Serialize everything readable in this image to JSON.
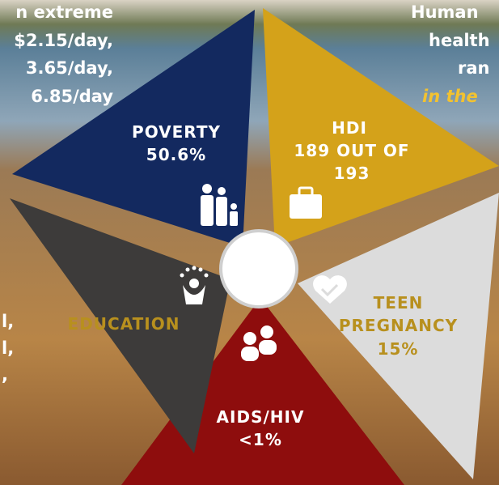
{
  "background_text": {
    "left": [
      "n extreme",
      "$2.15/day,",
      "3.65/day,",
      "6.85/day"
    ],
    "right": [
      "Human",
      "health",
      "ran"
    ],
    "right_italic": "in the",
    "left_lower": [
      "l,",
      "l,",
      ","
    ]
  },
  "segments": [
    {
      "label": "POVERTY",
      "value": "50.6%"
    },
    {
      "label": "HDI",
      "value": "189 OUT OF 193"
    },
    {
      "label": "TEEN PREGNANCY",
      "value": "15%"
    },
    {
      "label": "AIDS/HIV",
      "value": "<1%"
    },
    {
      "label": "EDUCATION"
    }
  ]
}
